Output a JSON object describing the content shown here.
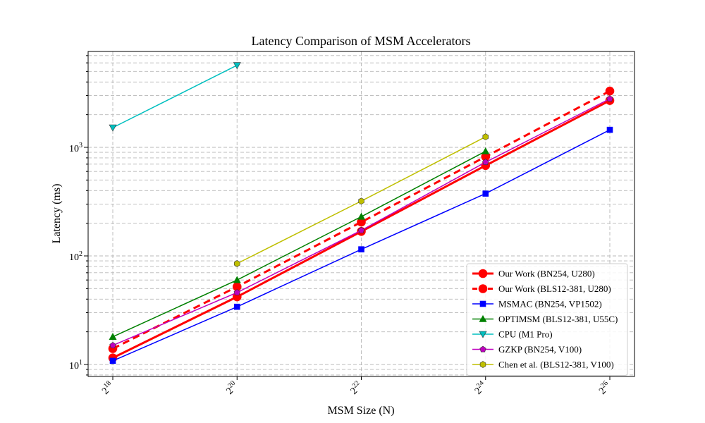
{
  "chart_data": {
    "type": "line",
    "title": "Latency Comparison of MSM Accelerators",
    "xlabel": "MSM Size (N)",
    "ylabel": "Latency (ms)",
    "x_scale": "log2",
    "y_scale": "log10",
    "x_tick_labels": [
      {
        "base": "2",
        "exp": "18"
      },
      {
        "base": "2",
        "exp": "20"
      },
      {
        "base": "2",
        "exp": "22"
      },
      {
        "base": "2",
        "exp": "24"
      },
      {
        "base": "2",
        "exp": "26"
      }
    ],
    "y_tick_labels": [
      {
        "base": "10",
        "exp": "1"
      },
      {
        "base": "10",
        "exp": "2"
      },
      {
        "base": "10",
        "exp": "3"
      }
    ],
    "grid": true,
    "legend_position": "lower-right",
    "series": [
      {
        "name": "Our Work (BN254, U280)",
        "color": "#ff0000",
        "marker": "circle",
        "linestyle": "solid",
        "width": 3,
        "x": [
          262144,
          1048576,
          4194304,
          16777216,
          67108864
        ],
        "y": [
          11.5,
          42,
          168,
          680,
          2700
        ]
      },
      {
        "name": "Our Work (BLS12-381, U280)",
        "color": "#ff0000",
        "marker": "circle",
        "linestyle": "dashed",
        "width": 3,
        "x": [
          262144,
          1048576,
          4194304,
          16777216,
          67108864
        ],
        "y": [
          14,
          52,
          205,
          820,
          3300
        ]
      },
      {
        "name": "MSMAC (BN254, VP1502)",
        "color": "#0000ff",
        "marker": "square",
        "linestyle": "solid",
        "width": 1.5,
        "x": [
          262144,
          1048576,
          4194304,
          16777216,
          67108864
        ],
        "y": [
          10.8,
          34,
          115,
          375,
          1450
        ]
      },
      {
        "name": "OPTIMSM (BLS12-381, U55C)",
        "color": "#008000",
        "marker": "triangle-up",
        "linestyle": "solid",
        "width": 1.5,
        "x": [
          262144,
          1048576,
          4194304,
          16777216
        ],
        "y": [
          18,
          60,
          230,
          920
        ]
      },
      {
        "name": "CPU (M1 Pro)",
        "color": "#00bfbf",
        "marker": "triangle-down",
        "linestyle": "solid",
        "width": 1.5,
        "x": [
          262144,
          1048576
        ],
        "y": [
          1520,
          5700
        ]
      },
      {
        "name": "GZKP (BN254, V100)",
        "color": "#bf00bf",
        "marker": "pentagon",
        "linestyle": "solid",
        "width": 1.5,
        "x": [
          262144,
          1048576,
          4194304,
          16777216,
          67108864
        ],
        "y": [
          15,
          46,
          172,
          730,
          2800
        ]
      },
      {
        "name": "Chen et al. (BLS12-381, V100)",
        "color": "#bfbf00",
        "marker": "hexagon",
        "linestyle": "solid",
        "width": 1.5,
        "x": [
          1048576,
          4194304,
          16777216
        ],
        "y": [
          85,
          320,
          1250
        ]
      }
    ]
  }
}
